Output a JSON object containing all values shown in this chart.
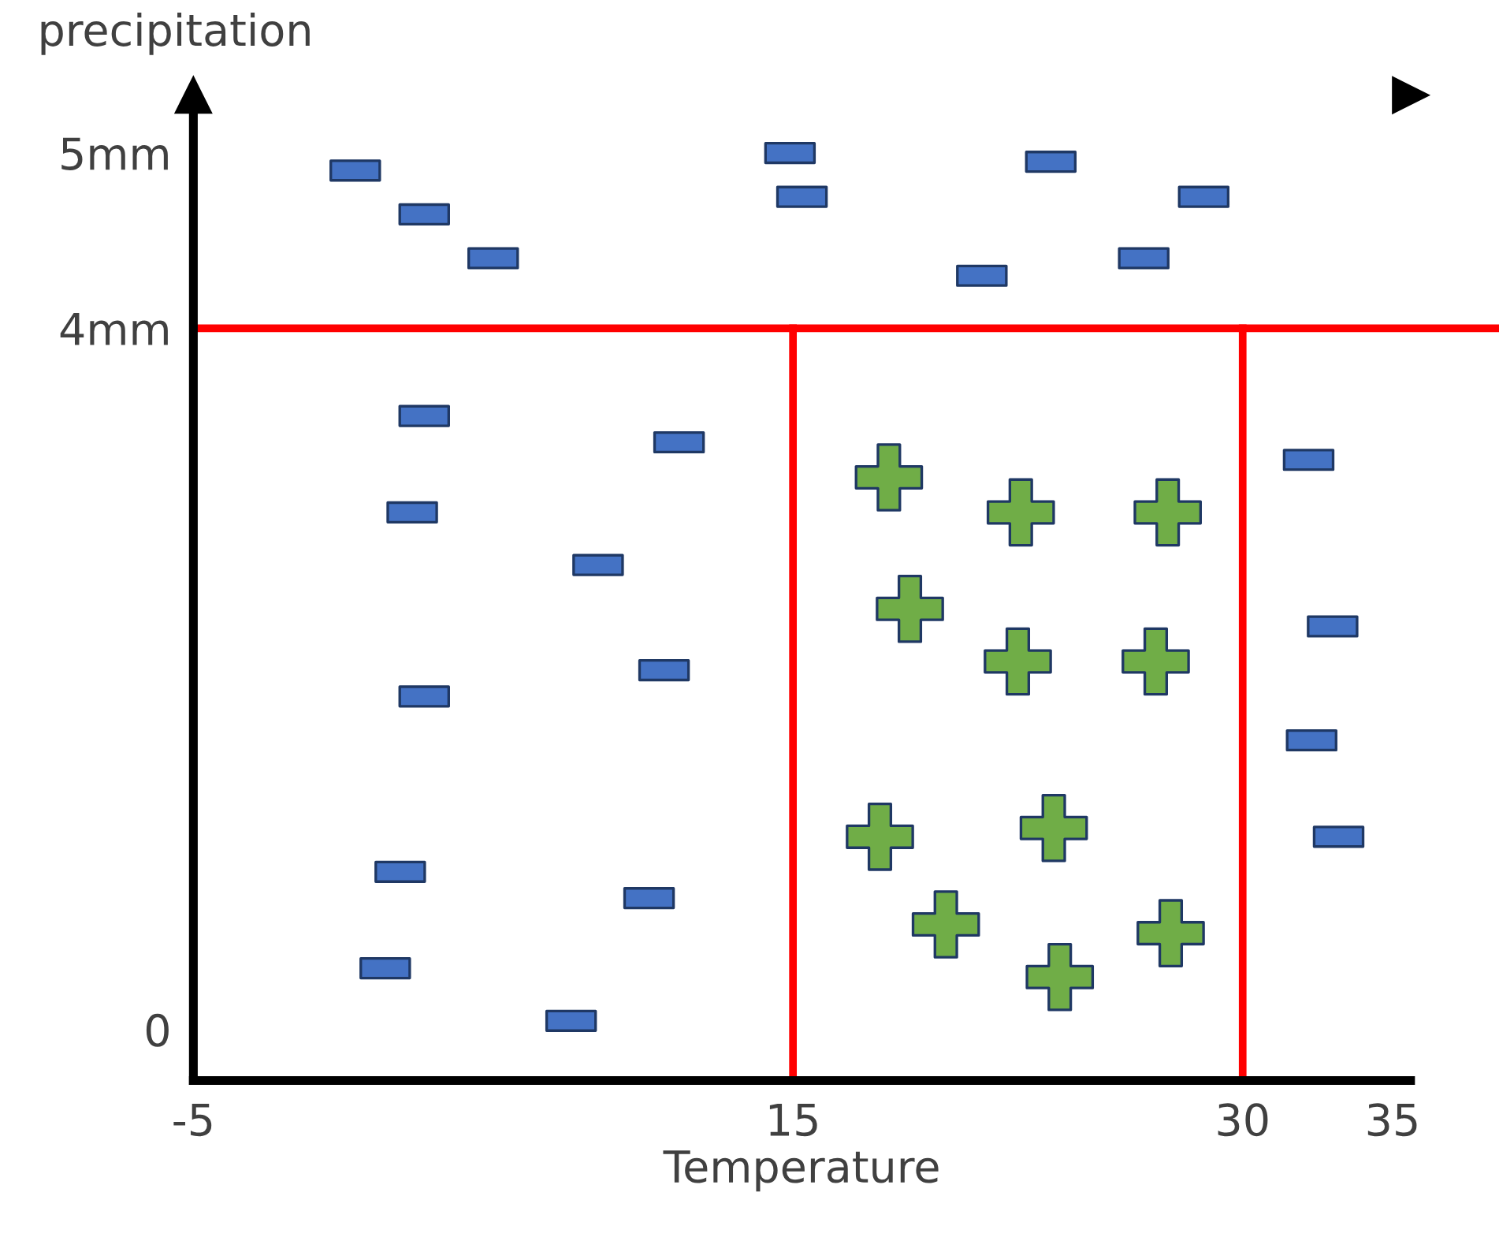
{
  "chart_data": {
    "type": "scatter",
    "xlabel": "Temperature",
    "ylabel": "precipitation",
    "xlim": [
      -5,
      35.6
    ],
    "ylim": [
      -0.29,
      5.33
    ],
    "xticks": [
      -5,
      15,
      30,
      35
    ],
    "yticks": [
      {
        "value": 0,
        "label": "0"
      },
      {
        "value": 4,
        "label": "4mm"
      },
      {
        "value": 5,
        "label": "5mm"
      }
    ],
    "grid": false,
    "legend": false,
    "series": [
      {
        "color": "#4472c4",
        "marker": "square",
        "x": [
          0.4,
          2.7,
          5.0,
          14.9,
          15.3,
          23.6,
          28.7,
          21.3,
          26.7,
          2.7,
          11.2,
          2.3,
          8.5,
          2.7,
          10.7,
          1.9,
          10.2,
          1.4,
          7.6,
          32.2,
          33.0,
          32.3,
          33.2
        ],
        "values": [
          4.9,
          4.65,
          4.4,
          5.0,
          4.75,
          4.95,
          4.75,
          4.3,
          4.4,
          3.5,
          3.35,
          2.95,
          2.65,
          1.9,
          2.05,
          0.9,
          0.75,
          0.35,
          0.05,
          3.25,
          2.3,
          1.65,
          1.1
        ]
      },
      {
        "color": "#70ad47",
        "marker": "cross",
        "x": [
          18.2,
          22.6,
          27.5,
          18.9,
          22.5,
          27.1,
          17.9,
          23.7,
          20.1,
          23.9,
          27.6
        ],
        "values": [
          3.15,
          2.95,
          2.95,
          2.4,
          2.1,
          2.1,
          1.1,
          1.15,
          0.6,
          0.3,
          0.55
        ]
      }
    ],
    "ref_lines": [
      {
        "axis": "y",
        "value": 4,
        "color": "#ff0000"
      },
      {
        "axis": "x",
        "value": 15,
        "color": "#ff0000"
      },
      {
        "axis": "x",
        "value": 30,
        "color": "#ff0000"
      }
    ]
  }
}
